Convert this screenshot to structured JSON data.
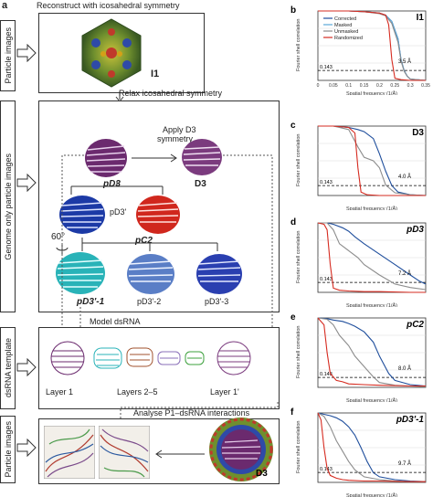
{
  "panel_a": {
    "letter": "a",
    "top_caption": "Reconstruct with icosahedral symmetry",
    "relax_caption": "Relax icosahedral symmetry",
    "apply_caption_1": "Apply D3",
    "apply_caption_2": "symmetry",
    "model_caption": "Model dsRNA",
    "analyse_caption": "Analyse P1–dsRNA interactions",
    "side_labels": [
      "Particle images",
      "Genome only particle images",
      "dsRNA template",
      "Particle images"
    ],
    "maps": {
      "i1": "I1",
      "pd3_left": "pD3",
      "d3_right": "D3",
      "pd3prime": "pD3'",
      "pc2": "pC2",
      "angle": "60°",
      "pd3p1": "pD3'-1",
      "pd3p2": "pD3'-2",
      "pd3p3": "pD3'-3",
      "layer1": "Layer 1",
      "layers25": "Layers 2–5",
      "layer1p": "Layer 1'",
      "d3_bottom": "D3"
    }
  },
  "fsc_common": {
    "ylabel": "Fourier shell correlation",
    "xlabel": "Spatial frequency (1/Å)",
    "threshold_label": "0.143"
  },
  "fsc_panels": [
    {
      "letter": "b",
      "title": "I1",
      "resolution": "3.5 Å",
      "legend": [
        "Corrected",
        "Masked",
        "Unmasked",
        "Randomized"
      ],
      "xticks": [
        "0",
        "0.05",
        "0.1",
        "0.15",
        "0.2",
        "0.25",
        "0.3",
        "0.35"
      ],
      "chart_data": {
        "type": "line",
        "xlim": [
          0,
          0.35
        ],
        "ylim": [
          0,
          1
        ],
        "series": [
          {
            "name": "Corrected",
            "x": [
              0,
              0.05,
              0.1,
              0.15,
              0.2,
              0.22,
              0.24,
              0.26,
              0.27,
              0.28,
              0.29,
              0.3,
              0.32,
              0.35
            ],
            "y": [
              1,
              1,
              1,
              0.99,
              0.97,
              0.94,
              0.85,
              0.6,
              0.3,
              0.143,
              0.06,
              0.02,
              0.01,
              0
            ]
          },
          {
            "name": "Masked",
            "x": [
              0,
              0.05,
              0.1,
              0.15,
              0.2,
              0.22,
              0.24,
              0.26,
              0.27,
              0.28,
              0.29,
              0.3,
              0.32,
              0.35
            ],
            "y": [
              1,
              1,
              1,
              0.99,
              0.97,
              0.94,
              0.85,
              0.6,
              0.3,
              0.14,
              0.06,
              0.02,
              0.01,
              0
            ]
          },
          {
            "name": "Unmasked",
            "x": [
              0,
              0.05,
              0.1,
              0.15,
              0.2,
              0.22,
              0.24,
              0.26,
              0.27,
              0.28,
              0.29,
              0.3,
              0.32,
              0.35
            ],
            "y": [
              1,
              1,
              1,
              0.99,
              0.96,
              0.93,
              0.82,
              0.55,
              0.28,
              0.13,
              0.06,
              0.02,
              0.01,
              0
            ]
          },
          {
            "name": "Randomized",
            "x": [
              0,
              0.05,
              0.1,
              0.15,
              0.2,
              0.22,
              0.23,
              0.24,
              0.25,
              0.27,
              0.3,
              0.35
            ],
            "y": [
              1,
              1,
              1,
              0.99,
              0.97,
              0.94,
              0.8,
              0.3,
              0.03,
              0.01,
              0,
              0
            ]
          }
        ]
      }
    },
    {
      "letter": "c",
      "title": "D3",
      "resolution": "4.0 Å",
      "chart_data": {
        "type": "line",
        "xlim": [
          0,
          0.35
        ],
        "ylim": [
          0,
          1
        ],
        "series": [
          {
            "name": "Corrected",
            "x": [
              0,
              0.05,
              0.1,
              0.13,
              0.15,
              0.18,
              0.2,
              0.22,
              0.24,
              0.26,
              0.3,
              0.35
            ],
            "y": [
              1,
              1,
              0.98,
              0.95,
              0.92,
              0.82,
              0.6,
              0.35,
              0.143,
              0.05,
              0.01,
              0
            ]
          },
          {
            "name": "Unmasked",
            "x": [
              0,
              0.05,
              0.1,
              0.13,
              0.15,
              0.18,
              0.2,
              0.22,
              0.25,
              0.3,
              0.35
            ],
            "y": [
              1,
              1,
              0.95,
              0.7,
              0.55,
              0.5,
              0.4,
              0.15,
              0.04,
              0.01,
              0
            ]
          },
          {
            "name": "Randomized",
            "x": [
              0,
              0.05,
              0.1,
              0.12,
              0.13,
              0.14,
              0.16,
              0.2,
              0.3,
              0.35
            ],
            "y": [
              1,
              1,
              0.98,
              0.9,
              0.4,
              0.05,
              0.01,
              0,
              0,
              0
            ]
          }
        ]
      }
    },
    {
      "letter": "d",
      "title": "pD3",
      "resolution": "7.2 Å",
      "chart_data": {
        "type": "line",
        "xlim": [
          0,
          0.35
        ],
        "ylim": [
          0,
          1
        ],
        "series": [
          {
            "name": "Corrected",
            "x": [
              0,
              0.03,
              0.05,
              0.08,
              0.1,
              0.12,
              0.15,
              0.2,
              0.25,
              0.3,
              0.33,
              0.35
            ],
            "y": [
              1,
              1,
              0.98,
              0.93,
              0.88,
              0.8,
              0.7,
              0.55,
              0.4,
              0.25,
              0.16,
              0.12
            ]
          },
          {
            "name": "Unmasked",
            "x": [
              0,
              0.03,
              0.05,
              0.07,
              0.1,
              0.13,
              0.15,
              0.2,
              0.25,
              0.3,
              0.35
            ],
            "y": [
              1,
              1,
              0.9,
              0.7,
              0.6,
              0.5,
              0.4,
              0.25,
              0.12,
              0.07,
              0.04
            ]
          },
          {
            "name": "Randomized",
            "x": [
              0,
              0.02,
              0.03,
              0.04,
              0.05,
              0.07,
              0.1,
              0.15,
              0.2,
              0.3,
              0.35
            ],
            "y": [
              1,
              0.98,
              0.9,
              0.4,
              0.06,
              0.03,
              0.02,
              0.01,
              0.01,
              0,
              0
            ]
          }
        ]
      }
    },
    {
      "letter": "e",
      "title": "pC2",
      "resolution": "8.0 Å",
      "chart_data": {
        "type": "line",
        "xlim": [
          0,
          0.35
        ],
        "ylim": [
          0,
          1
        ],
        "series": [
          {
            "name": "Corrected",
            "x": [
              0,
              0.03,
              0.05,
              0.08,
              0.1,
              0.12,
              0.15,
              0.18,
              0.2,
              0.23,
              0.25,
              0.3,
              0.35
            ],
            "y": [
              1,
              0.99,
              0.97,
              0.95,
              0.92,
              0.88,
              0.8,
              0.65,
              0.45,
              0.2,
              0.1,
              0.04,
              0.02
            ]
          },
          {
            "name": "Unmasked",
            "x": [
              0,
              0.03,
              0.05,
              0.07,
              0.1,
              0.12,
              0.15,
              0.18,
              0.2,
              0.25,
              0.3,
              0.35
            ],
            "y": [
              1,
              0.98,
              0.9,
              0.75,
              0.6,
              0.45,
              0.3,
              0.15,
              0.07,
              0.03,
              0.02,
              0.01
            ]
          },
          {
            "name": "Randomized",
            "x": [
              0,
              0.02,
              0.03,
              0.04,
              0.06,
              0.08,
              0.1,
              0.15,
              0.2,
              0.3,
              0.35
            ],
            "y": [
              1,
              0.9,
              0.5,
              0.2,
              0.1,
              0.08,
              0.05,
              0.04,
              0.03,
              0.02,
              0.02
            ]
          }
        ]
      }
    },
    {
      "letter": "f",
      "title": "pD3'-1",
      "resolution": "9.7 Å",
      "chart_data": {
        "type": "line",
        "xlim": [
          0,
          0.35
        ],
        "ylim": [
          0,
          1
        ],
        "series": [
          {
            "name": "Corrected",
            "x": [
              0,
              0.02,
              0.04,
              0.06,
              0.08,
              0.1,
              0.12,
              0.14,
              0.16,
              0.18,
              0.2,
              0.25,
              0.3,
              0.35
            ],
            "y": [
              1,
              0.98,
              0.96,
              0.93,
              0.88,
              0.8,
              0.68,
              0.5,
              0.3,
              0.14,
              0.08,
              0.04,
              0.02,
              0.01
            ]
          },
          {
            "name": "Unmasked",
            "x": [
              0,
              0.02,
              0.04,
              0.06,
              0.08,
              0.1,
              0.12,
              0.15,
              0.2,
              0.25,
              0.3,
              0.35
            ],
            "y": [
              1,
              0.95,
              0.8,
              0.6,
              0.45,
              0.3,
              0.18,
              0.08,
              0.04,
              0.02,
              0.01,
              0.01
            ]
          },
          {
            "name": "Randomized",
            "x": [
              0,
              0.01,
              0.02,
              0.03,
              0.04,
              0.06,
              0.08,
              0.1,
              0.15,
              0.2,
              0.3,
              0.35
            ],
            "y": [
              1,
              0.9,
              0.5,
              0.2,
              0.1,
              0.06,
              0.04,
              0.03,
              0.02,
              0.02,
              0.01,
              0.01
            ]
          }
        ]
      }
    }
  ]
}
